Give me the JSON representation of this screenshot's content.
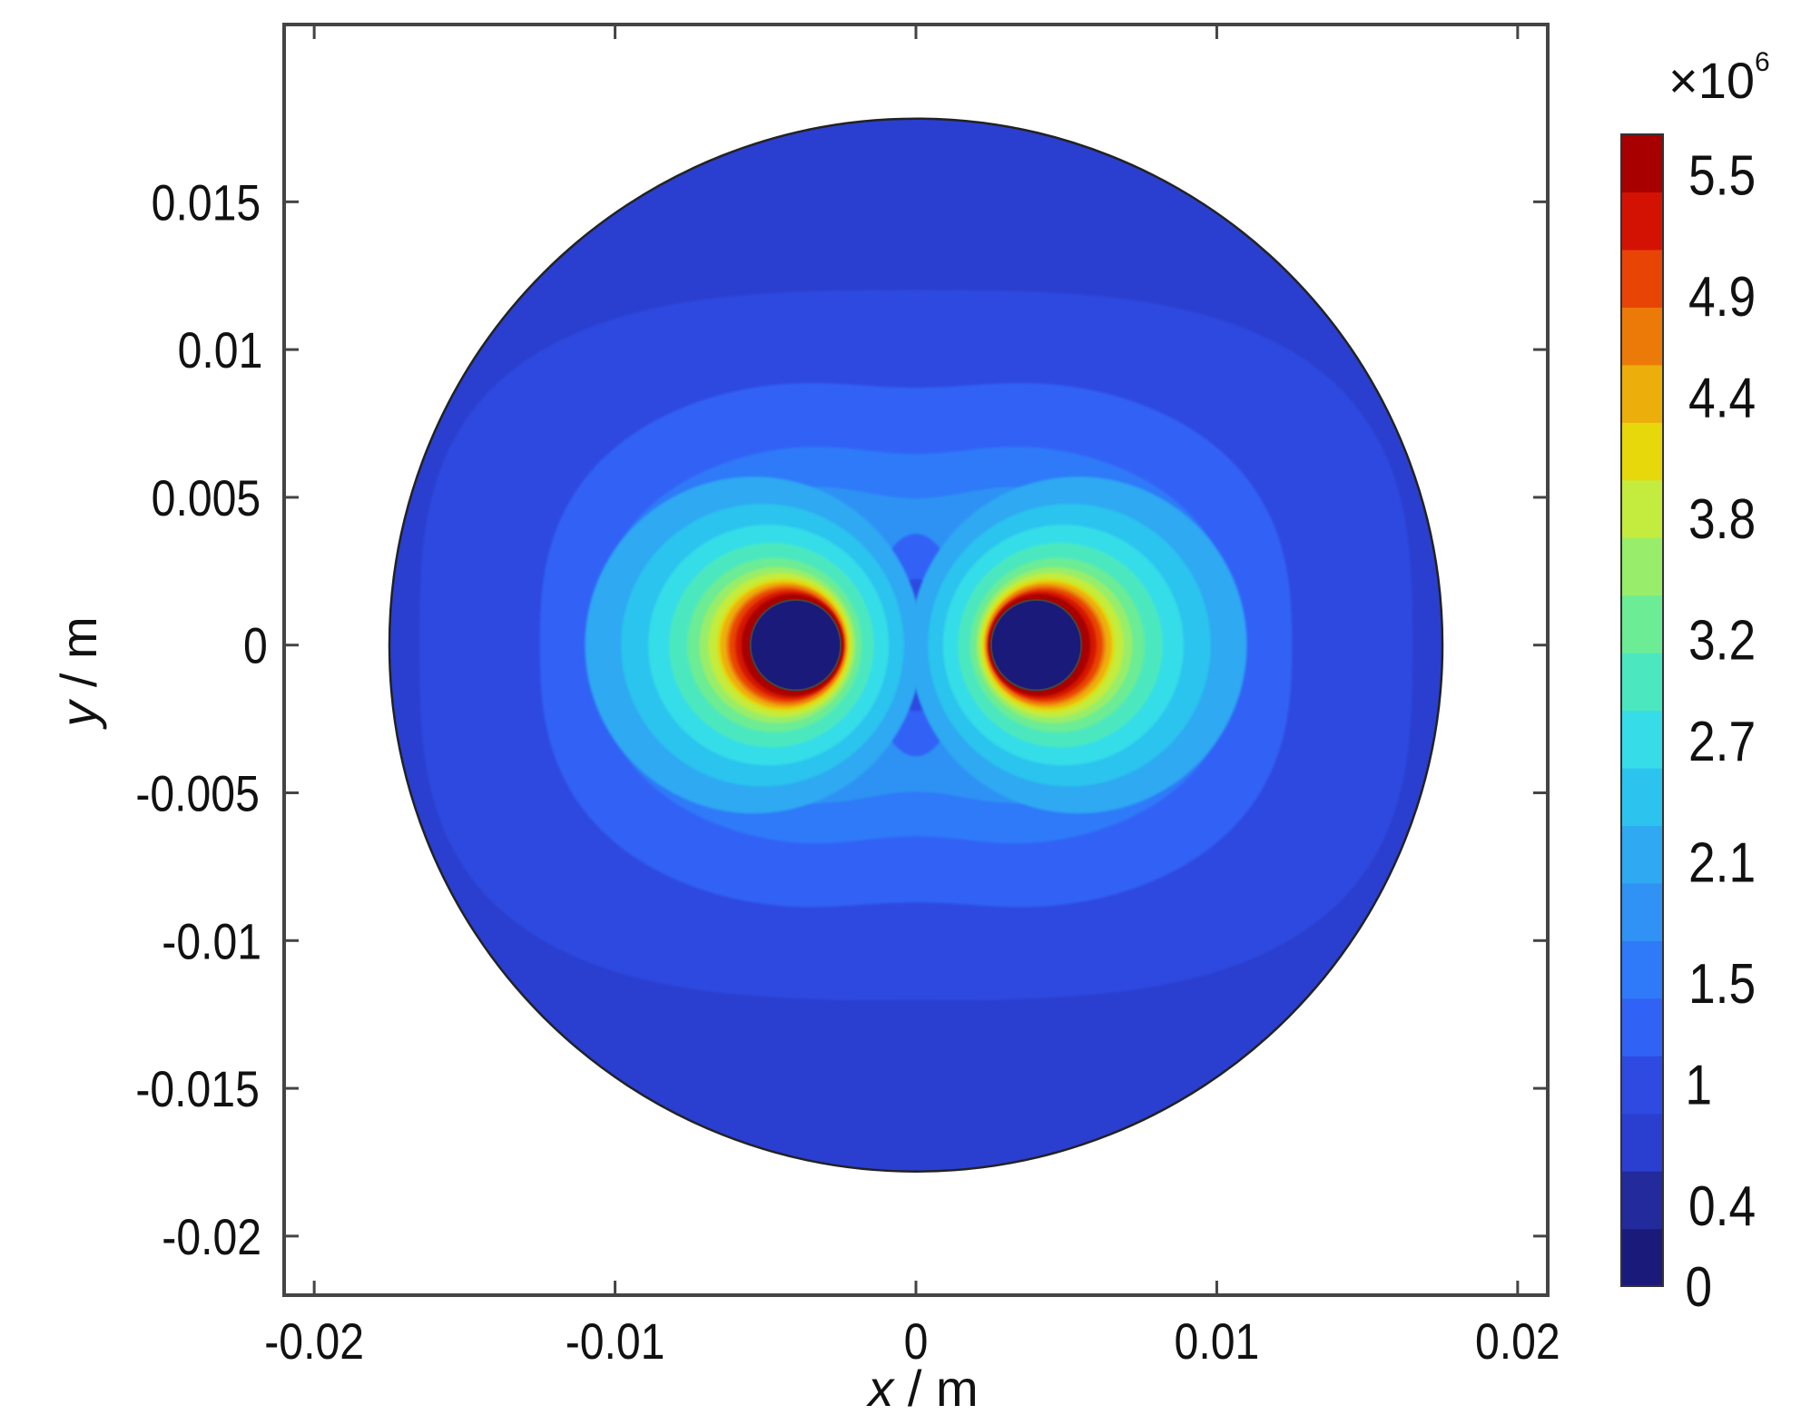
{
  "chart_data": {
    "type": "heatmap",
    "title": "",
    "xlabel_var": "x",
    "xlabel_unit": " / m",
    "ylabel_var": "y",
    "ylabel_unit": " / m",
    "xlim": [
      -0.021,
      0.021
    ],
    "ylim": [
      -0.022,
      0.021
    ],
    "x_ticks": [
      -0.02,
      -0.01,
      0,
      0.01,
      0.02
    ],
    "x_tick_labels": [
      "-0.02",
      "-0.01",
      "0",
      "0.01",
      "0.02"
    ],
    "y_ticks": [
      0.015,
      0.01,
      0.005,
      0,
      -0.005,
      -0.01,
      -0.015,
      -0.02
    ],
    "y_tick_labels": [
      "0.015",
      "0.01",
      "0.005",
      "0",
      "-0.005",
      "-0.01",
      "-0.015",
      "-0.02"
    ],
    "domain": {
      "shape": "circle",
      "center": [
        0,
        0
      ],
      "radius": 0.0175
    },
    "conductors": [
      {
        "center": [
          -0.004,
          0
        ],
        "radius": 0.0015
      },
      {
        "center": [
          0.004,
          0
        ],
        "radius": 0.0015
      }
    ],
    "colorbar": {
      "multiplier_base": "×10",
      "multiplier_exp": "6",
      "min": 0,
      "max": 5.7,
      "tick_values": [
        5.5,
        4.9,
        4.4,
        3.8,
        3.2,
        2.7,
        2.1,
        1.5,
        1,
        0.4,
        0
      ],
      "tick_labels": [
        "5.5",
        "4.9",
        "4.4",
        "3.8",
        "3.2",
        "2.7",
        "2.1",
        "1.5",
        "1",
        "0.4",
        "0"
      ],
      "levels": 20,
      "colors": [
        "#1a1a7a",
        "#222a9c",
        "#2a3fd0",
        "#2e4ae0",
        "#3062f5",
        "#2f7af8",
        "#2f92f4",
        "#2ea9f2",
        "#2cc4ee",
        "#36dde8",
        "#4be8c0",
        "#6cec94",
        "#98ee6a",
        "#c4ec3e",
        "#e6d80a",
        "#ecae0a",
        "#ec7a08",
        "#e84406",
        "#d41204",
        "#a80000"
      ]
    }
  }
}
